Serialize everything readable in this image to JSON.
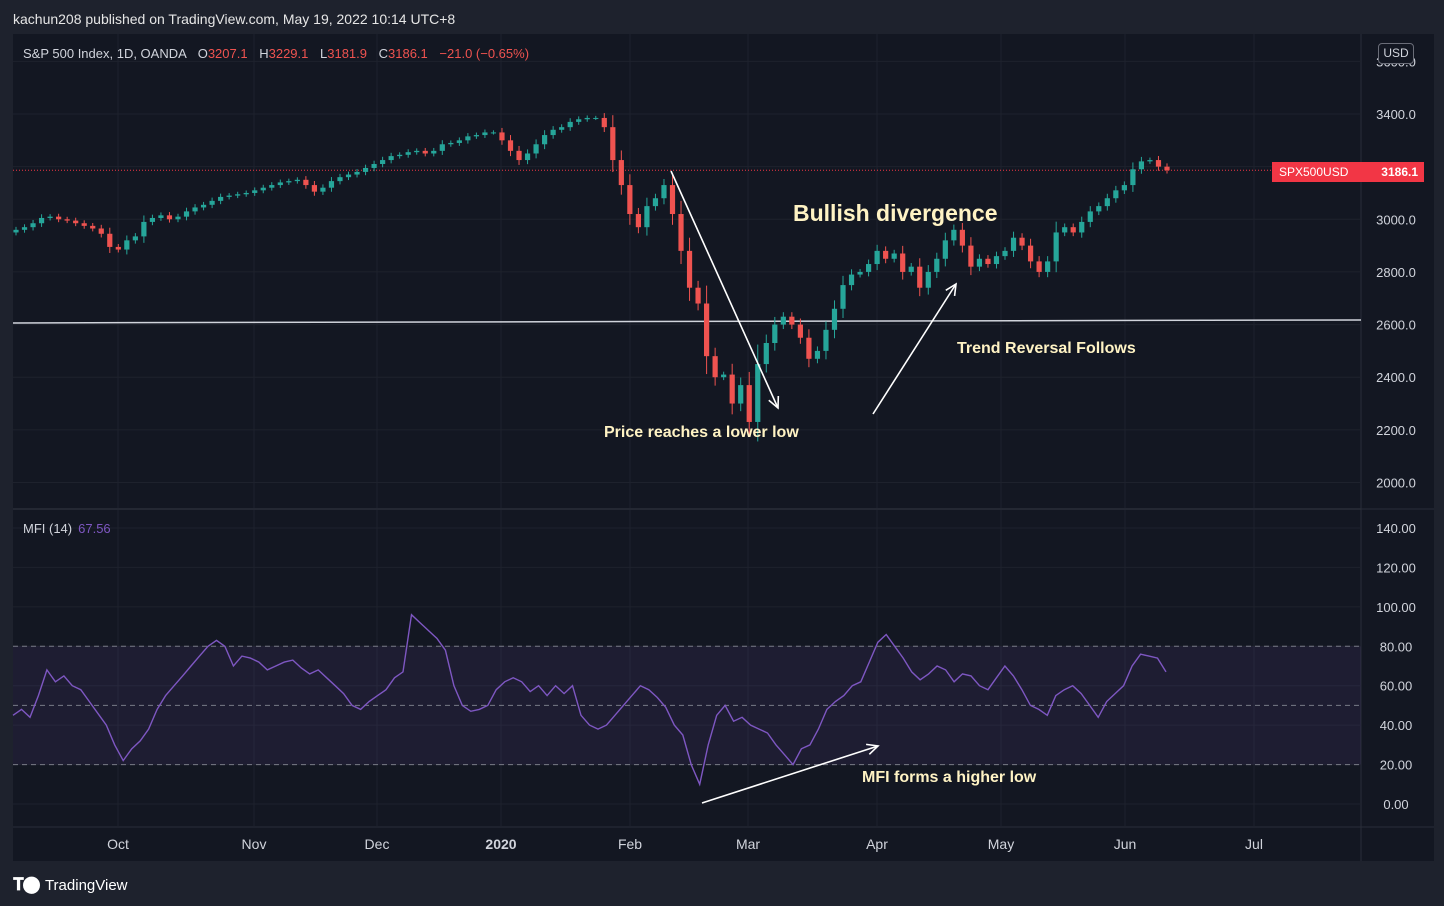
{
  "header": {
    "published": "kachun208 published on TradingView.com, May 19, 2022 10:14 UTC+8"
  },
  "legend": {
    "symbol": "S&P 500 Index, 1D, OANDA",
    "o_label": "O",
    "o": "3207.1",
    "h_label": "H",
    "h": "3229.1",
    "l_label": "L",
    "l": "3181.9",
    "c_label": "C",
    "c": "3186.1",
    "change": "−21.0 (−0.65%)"
  },
  "mfi_legend": {
    "name": "MFI (14)",
    "value": "67.56"
  },
  "currency": "USD",
  "price_tag": {
    "name": "SPX500USD",
    "price": "3186.1"
  },
  "annotations": {
    "bullish": "Bullish divergence",
    "trend": "Trend Reversal Follows",
    "lower_low": "Price reaches a lower low",
    "higher_low": "MFI forms a higher low"
  },
  "footer": {
    "brand": "TradingView"
  },
  "colors": {
    "up": "#26a69a",
    "down": "#ef5350",
    "mfi": "#7e57c2",
    "bg": "#131722",
    "frame": "#1e222d",
    "tag": "#f23645"
  },
  "chart_data": [
    {
      "type": "candlestick",
      "title": "S&P 500 Index, 1D, OANDA",
      "ylim": [
        1900,
        3650
      ],
      "y_ticks": [
        "3600.0",
        "3400.0",
        "3200.0",
        "3000.0",
        "2800.0",
        "2600.0",
        "2400.0",
        "2200.0",
        "2000.0"
      ],
      "x_ticks": [
        "Oct",
        "Nov",
        "Dec",
        "2020",
        "Feb",
        "Mar",
        "Apr",
        "May",
        "Jun",
        "Jul"
      ],
      "horizontal_line": 2610,
      "last_price": 3186.1,
      "close_approx": [
        2960,
        2970,
        2985,
        3005,
        3010,
        3000,
        2995,
        2985,
        2975,
        2965,
        2945,
        2895,
        2885,
        2920,
        2935,
        2990,
        3005,
        3015,
        3000,
        3010,
        3030,
        3045,
        3055,
        3070,
        3085,
        3090,
        3095,
        3100,
        3110,
        3120,
        3130,
        3140,
        3145,
        3150,
        3130,
        3105,
        3120,
        3145,
        3160,
        3170,
        3180,
        3195,
        3210,
        3225,
        3240,
        3245,
        3255,
        3260,
        3250,
        3260,
        3285,
        3290,
        3300,
        3315,
        3320,
        3330,
        3330,
        3300,
        3260,
        3225,
        3250,
        3285,
        3320,
        3340,
        3350,
        3370,
        3380,
        3385,
        3385,
        3350,
        3225,
        3130,
        3020,
        2970,
        3050,
        3080,
        3130,
        3020,
        2880,
        2740,
        2680,
        2480,
        2400,
        2410,
        2300,
        2370,
        2230,
        2450,
        2530,
        2600,
        2630,
        2600,
        2550,
        2470,
        2500,
        2580,
        2660,
        2750,
        2790,
        2800,
        2830,
        2880,
        2850,
        2870,
        2800,
        2820,
        2740,
        2800,
        2850,
        2920,
        2960,
        2900,
        2820,
        2850,
        2830,
        2860,
        2880,
        2930,
        2900,
        2840,
        2800,
        2840,
        2950,
        2970,
        2950,
        2990,
        3030,
        3050,
        3080,
        3110,
        3130,
        3190,
        3220,
        3225,
        3200,
        3186
      ]
    },
    {
      "type": "line",
      "title": "MFI (14)",
      "ylim": [
        -10,
        150
      ],
      "y_ticks": [
        "140.00",
        "120.00",
        "100.00",
        "80.00",
        "60.00",
        "40.00",
        "20.00",
        "0.00"
      ],
      "bands": [
        20,
        50,
        80
      ],
      "last_value": 67.56,
      "series": [
        {
          "values": [
            45,
            48,
            44,
            55,
            68,
            62,
            65,
            60,
            58,
            52,
            46,
            40,
            30,
            22,
            28,
            32,
            38,
            48,
            55,
            60,
            65,
            70,
            75,
            80,
            83,
            80,
            70,
            75,
            74,
            72,
            68,
            70,
            72,
            73,
            69,
            66,
            68,
            64,
            60,
            56,
            50,
            48,
            52,
            55,
            58,
            64,
            67,
            96,
            92,
            88,
            84,
            78,
            60,
            50,
            47,
            48,
            50,
            58,
            62,
            64,
            62,
            57,
            60,
            55,
            60,
            56,
            60,
            45,
            40,
            38,
            40,
            45,
            50,
            55,
            60,
            58,
            54,
            49,
            40,
            35,
            20,
            10,
            30,
            45,
            50,
            42,
            44,
            40,
            38,
            36,
            30,
            25,
            20,
            28,
            30,
            38,
            48,
            52,
            55,
            60,
            62,
            72,
            82,
            86,
            80,
            74,
            67,
            63,
            66,
            70,
            68,
            62,
            66,
            65,
            60,
            58,
            64,
            70,
            65,
            58,
            50,
            48,
            45,
            55,
            58,
            60,
            56,
            50,
            44,
            52,
            56,
            60,
            70,
            76,
            75,
            74,
            67
          ]
        }
      ]
    }
  ]
}
